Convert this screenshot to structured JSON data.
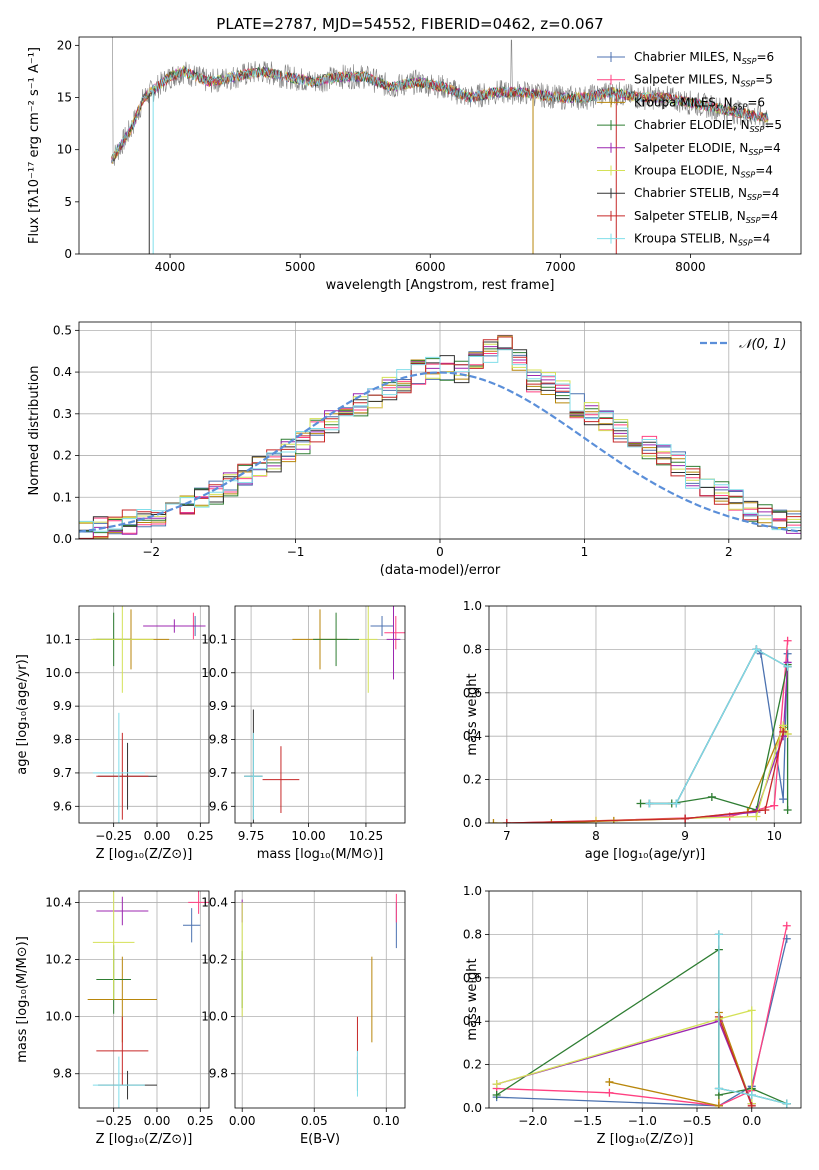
{
  "colors": [
    "#4c72b0",
    "#ff4081",
    "#b8860b",
    "#2e7d32",
    "#9c27b0",
    "#d4e157",
    "#333333",
    "#c62828",
    "#80deea"
  ],
  "chart_data": [
    {
      "id": "spectrum",
      "type": "line",
      "title": "PLATE=2787, MJD=54552, FIBERID=0462, z=0.067",
      "xlabel": "wavelength [Angstrom, rest frame]",
      "ylabel": "Flux [fλ10⁻¹⁷ erg cm⁻² s⁻¹ A⁻¹]",
      "xlim": [
        3300,
        8850
      ],
      "ylim": [
        0,
        20.8
      ],
      "xticks": [
        4000,
        5000,
        6000,
        7000,
        8000
      ],
      "yticks": [
        0,
        5,
        10,
        15,
        20
      ],
      "legend_position": "top-right",
      "data_color": "#808080",
      "data_profile": [
        [
          3550,
          9
        ],
        [
          3600,
          10
        ],
        [
          3700,
          12
        ],
        [
          3800,
          15
        ],
        [
          3900,
          16
        ],
        [
          4000,
          17
        ],
        [
          4100,
          17.5
        ],
        [
          4200,
          17
        ],
        [
          4300,
          16.5
        ],
        [
          4500,
          17
        ],
        [
          4700,
          17.5
        ],
        [
          4900,
          17
        ],
        [
          5100,
          16.5
        ],
        [
          5300,
          17
        ],
        [
          5500,
          17
        ],
        [
          5700,
          16
        ],
        [
          5900,
          16.5
        ],
        [
          6100,
          16
        ],
        [
          6300,
          15
        ],
        [
          6500,
          15.5
        ],
        [
          6700,
          15.5
        ],
        [
          7000,
          15
        ],
        [
          7200,
          15
        ],
        [
          7400,
          15.5
        ],
        [
          7600,
          15
        ],
        [
          7800,
          15
        ],
        [
          8000,
          14.5
        ],
        [
          8200,
          14
        ],
        [
          8400,
          13.5
        ],
        [
          8600,
          13
        ]
      ],
      "model_end": {
        "x": 7430,
        "y": 0
      },
      "series": [
        {
          "name": "Chabrier MILES, N_SSP=6",
          "label": "Chabrier MILES, N",
          "sub": "SSP",
          "eq": "=6"
        },
        {
          "name": "Salpeter MILES, N_SSP=5",
          "label": "Salpeter MILES, N",
          "sub": "SSP",
          "eq": "=5"
        },
        {
          "name": "Kroupa MILES, N_SSP=6",
          "label": "Kroupa MILES, N",
          "sub": "SSP",
          "eq": "=6"
        },
        {
          "name": "Chabrier ELODIE, N_SSP=5",
          "label": "Chabrier ELODIE, N",
          "sub": "SSP",
          "eq": "=5"
        },
        {
          "name": "Salpeter ELODIE, N_SSP=4",
          "label": "Salpeter ELODIE, N",
          "sub": "SSP",
          "eq": "=4"
        },
        {
          "name": "Kroupa ELODIE, N_SSP=4",
          "label": "Kroupa ELODIE, N",
          "sub": "SSP",
          "eq": "=4"
        },
        {
          "name": "Chabrier STELIB, N_SSP=4",
          "label": "Chabrier STELIB, N",
          "sub": "SSP",
          "eq": "=4"
        },
        {
          "name": "Salpeter STELIB, N_SSP=4",
          "label": "Salpeter STELIB, N",
          "sub": "SSP",
          "eq": "=4"
        },
        {
          "name": "Kroupa STELIB, N_SSP=4",
          "label": "Kroupa STELIB, N",
          "sub": "SSP",
          "eq": "=4"
        }
      ]
    },
    {
      "id": "residuals",
      "type": "bar",
      "xlabel": "(data-model)/error",
      "ylabel": "Normed distribution",
      "xlim": [
        -2.5,
        2.5
      ],
      "ylim": [
        0,
        0.52
      ],
      "xticks": [
        -2,
        -1,
        0,
        1,
        2
      ],
      "yticks": [
        0.0,
        0.1,
        0.2,
        0.3,
        0.4,
        0.5
      ],
      "bin_edges_start": -2.5,
      "bin_width": 0.1,
      "base_values": [
        0.02,
        0.03,
        0.03,
        0.04,
        0.05,
        0.06,
        0.07,
        0.08,
        0.1,
        0.11,
        0.13,
        0.15,
        0.17,
        0.19,
        0.21,
        0.23,
        0.26,
        0.28,
        0.3,
        0.32,
        0.34,
        0.36,
        0.38,
        0.4,
        0.41,
        0.41,
        0.4,
        0.42,
        0.45,
        0.46,
        0.43,
        0.38,
        0.37,
        0.35,
        0.32,
        0.3,
        0.28,
        0.26,
        0.24,
        0.22,
        0.2,
        0.18,
        0.15,
        0.13,
        0.11,
        0.09,
        0.07,
        0.06,
        0.05,
        0.04
      ],
      "gaussian": {
        "name": "N(0,1)",
        "label": "𝒩(0, 1)",
        "color": "#5b8fd9"
      },
      "legend_position": "top-right"
    },
    {
      "id": "age_vs_Z",
      "type": "scatter",
      "xlabel": "Z [log₁₀(Z/Z⊙)]",
      "ylabel": "age  [log₁₀(age/yr)]",
      "xlim": [
        -0.45,
        0.3
      ],
      "ylim": [
        9.55,
        10.2
      ],
      "xticks": [
        -0.25,
        0.0,
        0.25
      ],
      "xticklabels": [
        "−0.25",
        "0.00",
        "0.25"
      ],
      "yticks": [
        9.6,
        9.7,
        9.8,
        9.9,
        10.0,
        10.1
      ],
      "points": [
        {
          "x": 0.22,
          "y": 10.14,
          "xerr": 0.05,
          "yerr": 0.03,
          "c": 0
        },
        {
          "x": 0.21,
          "y": 10.14,
          "xerr": 0.05,
          "yerr": 0.04,
          "c": 1
        },
        {
          "x": -0.15,
          "y": 10.1,
          "xerr": 0.22,
          "yerr": 0.09,
          "c": 2
        },
        {
          "x": -0.25,
          "y": 10.1,
          "xerr": 0.1,
          "yerr": 0.08,
          "c": 3
        },
        {
          "x": 0.1,
          "y": 10.14,
          "xerr": 0.18,
          "yerr": 0.02,
          "c": 4
        },
        {
          "x": -0.2,
          "y": 10.1,
          "xerr": 0.18,
          "yerr": 0.16,
          "c": 5
        },
        {
          "x": -0.17,
          "y": 9.69,
          "xerr": 0.17,
          "yerr": 0.1,
          "c": 6
        },
        {
          "x": -0.2,
          "y": 9.69,
          "xerr": 0.15,
          "yerr": 0.13,
          "c": 7
        },
        {
          "x": -0.22,
          "y": 9.7,
          "xerr": 0.15,
          "yerr": 0.18,
          "c": 8
        }
      ]
    },
    {
      "id": "age_vs_mass",
      "type": "scatter",
      "xlabel": "mass [log₁₀(M/M⊙)]",
      "xlim": [
        9.68,
        10.42
      ],
      "ylim": [
        9.55,
        10.2
      ],
      "xticks": [
        9.75,
        10.0,
        10.25
      ],
      "xticklabels": [
        "9.75",
        "10.00",
        "10.25"
      ],
      "yticks": [
        9.6,
        9.7,
        9.8,
        9.9,
        10.0,
        10.1
      ],
      "points": [
        {
          "x": 10.32,
          "y": 10.14,
          "xerr": 0.05,
          "yerr": 0.03,
          "c": 0
        },
        {
          "x": 10.38,
          "y": 10.12,
          "xerr": 0.05,
          "yerr": 0.05,
          "c": 1
        },
        {
          "x": 10.05,
          "y": 10.1,
          "xerr": 0.12,
          "yerr": 0.09,
          "c": 2
        },
        {
          "x": 10.12,
          "y": 10.1,
          "xerr": 0.1,
          "yerr": 0.08,
          "c": 3
        },
        {
          "x": 10.37,
          "y": 10.1,
          "xerr": 0.03,
          "yerr": 0.12,
          "c": 4
        },
        {
          "x": 10.26,
          "y": 10.1,
          "xerr": 0.04,
          "yerr": 0.16,
          "c": 5
        },
        {
          "x": 9.76,
          "y": 9.69,
          "xerr": 0.04,
          "yerr": 0.2,
          "c": 6
        },
        {
          "x": 9.88,
          "y": 9.68,
          "xerr": 0.08,
          "yerr": 0.1,
          "c": 7
        },
        {
          "x": 9.76,
          "y": 9.69,
          "xerr": 0.04,
          "yerr": 0.13,
          "c": 8
        }
      ]
    },
    {
      "id": "mass_weight_vs_age",
      "type": "line",
      "xlabel": "age  [log₁₀(age/yr)]",
      "ylabel": "mass weight",
      "xlim": [
        6.8,
        10.3
      ],
      "ylim": [
        0,
        1.0
      ],
      "xticks": [
        7,
        8,
        9,
        10
      ],
      "yticks": [
        0.0,
        0.2,
        0.4,
        0.6,
        0.8,
        1.0
      ],
      "series": [
        {
          "c": 0,
          "x": [
            8.6,
            8.9,
            9.8,
            9.85,
            10.1,
            10.15
          ],
          "y": [
            0.09,
            0.09,
            0.8,
            0.78,
            0.11,
            0.78
          ]
        },
        {
          "c": 1,
          "x": [
            7.0,
            8.0,
            9.5,
            10.0,
            10.15
          ],
          "y": [
            0.0,
            0.01,
            0.03,
            0.08,
            0.84
          ]
        },
        {
          "c": 2,
          "x": [
            6.85,
            7.5,
            8.2,
            9.0,
            9.7,
            10.1,
            10.15
          ],
          "y": [
            0.0,
            0.0,
            0.01,
            0.02,
            0.05,
            0.44,
            0.41
          ]
        },
        {
          "c": 3,
          "x": [
            8.5,
            8.85,
            9.3,
            9.8,
            10.15,
            10.15
          ],
          "y": [
            0.09,
            0.09,
            0.12,
            0.06,
            0.73,
            0.06
          ]
        },
        {
          "c": 4,
          "x": [
            9.0,
            9.8,
            10.1,
            10.15
          ],
          "y": [
            0.02,
            0.05,
            0.4,
            0.74
          ]
        },
        {
          "c": 5,
          "x": [
            8.0,
            9.8,
            10.1,
            10.15
          ],
          "y": [
            0.01,
            0.03,
            0.45,
            0.41
          ]
        },
        {
          "c": 6,
          "x": [
            8.6,
            8.9,
            9.8,
            10.15
          ],
          "y": [
            0.09,
            0.09,
            0.8,
            0.72
          ]
        },
        {
          "c": 7,
          "x": [
            7.0,
            9.0,
            9.9,
            10.1
          ],
          "y": [
            0.0,
            0.02,
            0.06,
            0.42
          ]
        },
        {
          "c": 8,
          "x": [
            8.6,
            8.9,
            9.8,
            10.15
          ],
          "y": [
            0.09,
            0.09,
            0.8,
            0.72
          ]
        }
      ]
    },
    {
      "id": "mass_vs_Z",
      "type": "scatter",
      "xlabel": "Z [log₁₀(Z/Z⊙)]",
      "ylabel": "mass [log₁₀(M/M⊙)]",
      "xlim": [
        -0.45,
        0.3
      ],
      "ylim": [
        9.68,
        10.44
      ],
      "xticks": [
        -0.25,
        0.0,
        0.25
      ],
      "xticklabels": [
        "−0.25",
        "0.00",
        "0.25"
      ],
      "yticks": [
        9.8,
        10.0,
        10.2,
        10.4
      ],
      "points": [
        {
          "x": 0.2,
          "y": 10.32,
          "xerr": 0.05,
          "yerr": 0.06,
          "c": 0
        },
        {
          "x": 0.24,
          "y": 10.4,
          "xerr": 0.06,
          "yerr": 0.04,
          "c": 1
        },
        {
          "x": -0.2,
          "y": 10.06,
          "xerr": 0.2,
          "yerr": 0.15,
          "c": 2
        },
        {
          "x": -0.25,
          "y": 10.13,
          "xerr": 0.1,
          "yerr": 0.12,
          "c": 3
        },
        {
          "x": -0.2,
          "y": 10.37,
          "xerr": 0.15,
          "yerr": 0.05,
          "c": 4
        },
        {
          "x": -0.25,
          "y": 10.26,
          "xerr": 0.12,
          "yerr": 0.2,
          "c": 5
        },
        {
          "x": -0.17,
          "y": 9.76,
          "xerr": 0.17,
          "yerr": 0.05,
          "c": 6
        },
        {
          "x": -0.2,
          "y": 9.88,
          "xerr": 0.15,
          "yerr": 0.12,
          "c": 7
        },
        {
          "x": -0.22,
          "y": 9.76,
          "xerr": 0.15,
          "yerr": 0.1,
          "c": 8
        }
      ]
    },
    {
      "id": "mass_vs_ebv",
      "type": "scatter",
      "xlabel": "E(B-V)",
      "xlim": [
        -0.005,
        0.113
      ],
      "ylim": [
        9.68,
        10.44
      ],
      "xticks": [
        0.0,
        0.05,
        0.1
      ],
      "xticklabels": [
        "0.00",
        "0.05",
        "0.10"
      ],
      "yticks": [
        9.8,
        10.0,
        10.2,
        10.4
      ],
      "points": [
        {
          "x": 0.107,
          "y": 10.32,
          "xerr": 0,
          "yerr": 0.08,
          "c": 0
        },
        {
          "x": 0.107,
          "y": 10.38,
          "xerr": 0,
          "yerr": 0.05,
          "c": 1
        },
        {
          "x": 0.09,
          "y": 10.06,
          "xerr": 0,
          "yerr": 0.15,
          "c": 2
        },
        {
          "x": 0.0,
          "y": 10.13,
          "xerr": 0,
          "yerr": 0.1,
          "c": 3
        },
        {
          "x": 0.0,
          "y": 10.37,
          "xerr": 0,
          "yerr": 0.04,
          "c": 4
        },
        {
          "x": 0.0,
          "y": 10.2,
          "xerr": 0,
          "yerr": 0.2,
          "c": 5
        },
        {
          "x": 0.08,
          "y": 9.8,
          "xerr": 0,
          "yerr": 0.06,
          "c": 6
        },
        {
          "x": 0.08,
          "y": 9.9,
          "xerr": 0,
          "yerr": 0.1,
          "c": 7
        },
        {
          "x": 0.08,
          "y": 9.8,
          "xerr": 0,
          "yerr": 0.08,
          "c": 8
        }
      ]
    },
    {
      "id": "mass_weight_vs_Z",
      "type": "line",
      "xlabel": "Z [log₁₀(Z/Z⊙)]",
      "ylabel": "mass weight",
      "xlim": [
        -2.4,
        0.45
      ],
      "ylim": [
        0,
        1.0
      ],
      "xticks": [
        -2.0,
        -1.5,
        -1.0,
        -0.5,
        0.0
      ],
      "xticklabels": [
        "−2.0",
        "−1.5",
        "−1.0",
        "−0.5",
        "0.0"
      ],
      "yticks": [
        0.0,
        0.2,
        0.4,
        0.6,
        0.8,
        1.0
      ],
      "series": [
        {
          "c": 0,
          "x": [
            -2.33,
            -0.3,
            0.0,
            0.32
          ],
          "y": [
            0.05,
            0.01,
            0.1,
            0.78
          ]
        },
        {
          "c": 1,
          "x": [
            -2.33,
            -1.3,
            -0.3,
            0.0,
            0.32
          ],
          "y": [
            0.09,
            0.07,
            0.01,
            0.08,
            0.84
          ]
        },
        {
          "c": 2,
          "x": [
            -1.3,
            -0.3,
            -0.3,
            0.0
          ],
          "y": [
            0.12,
            0.01,
            0.44,
            0.02
          ]
        },
        {
          "c": 3,
          "x": [
            -2.33,
            -0.3,
            -0.3,
            0.0,
            0.32
          ],
          "y": [
            0.06,
            0.73,
            0.06,
            0.09,
            0.02
          ]
        },
        {
          "c": 4,
          "x": [
            -2.33,
            -0.3,
            0.0
          ],
          "y": [
            0.11,
            0.4,
            0.02
          ]
        },
        {
          "c": 5,
          "x": [
            -2.33,
            -0.3,
            0.0,
            0.0
          ],
          "y": [
            0.11,
            0.41,
            0.45,
            0.02
          ]
        },
        {
          "c": 6,
          "x": [
            -0.3,
            -0.3,
            0.0,
            0.32
          ],
          "y": [
            0.8,
            0.09,
            0.06,
            0.02
          ]
        },
        {
          "c": 7,
          "x": [
            -0.3,
            0.0
          ],
          "y": [
            0.42,
            0.01
          ]
        },
        {
          "c": 8,
          "x": [
            -0.3,
            -0.3,
            0.0,
            0.32
          ],
          "y": [
            0.8,
            0.09,
            0.06,
            0.02
          ]
        }
      ]
    }
  ]
}
